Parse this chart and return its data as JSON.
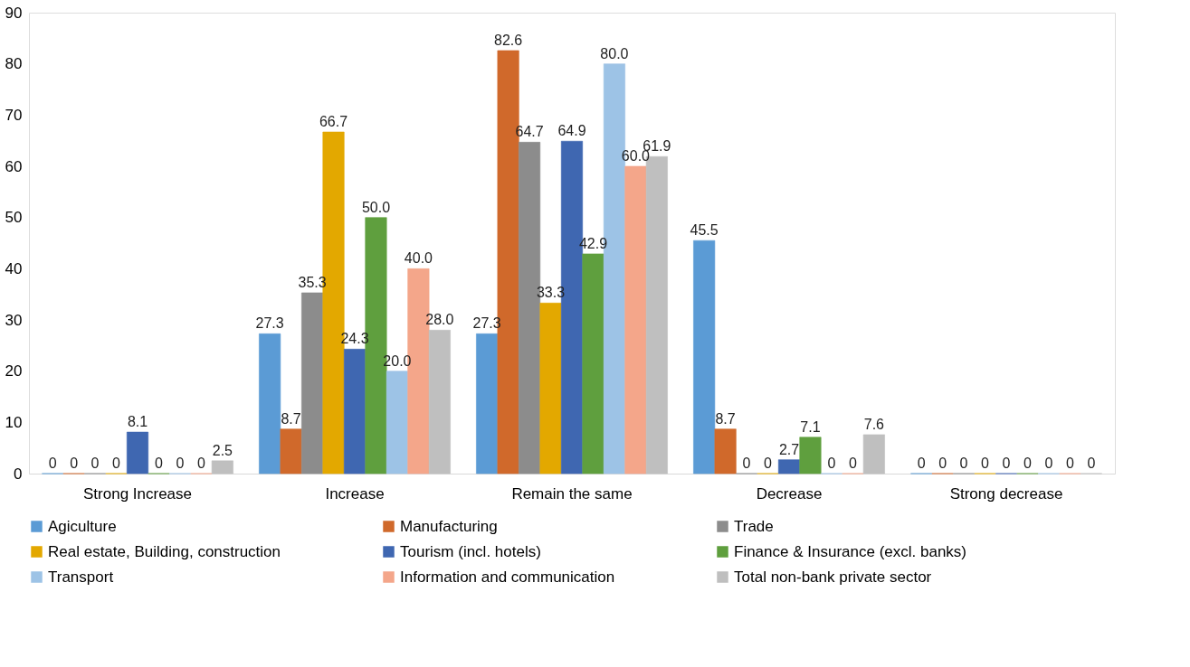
{
  "chart_data": {
    "type": "bar",
    "categories": [
      "Strong Increase",
      "Increase",
      "Remain the same",
      "Decrease",
      "Strong decrease"
    ],
    "series": [
      {
        "name": "Agiculture",
        "color": "#5b9bd5",
        "values": [
          0,
          27.3,
          27.3,
          45.5,
          0
        ],
        "value_labels": [
          "0",
          "27.3",
          "27.3",
          "45.5",
          "0"
        ]
      },
      {
        "name": "Manufacturing",
        "color": "#d0692b",
        "values": [
          0,
          8.7,
          82.6,
          8.7,
          0
        ],
        "value_labels": [
          "0",
          "8.7",
          "82.6",
          "8.7",
          "0"
        ]
      },
      {
        "name": "Trade",
        "color": "#8c8c8c",
        "values": [
          0,
          35.3,
          64.7,
          0,
          0
        ],
        "value_labels": [
          "0",
          "35.3",
          "64.7",
          "0",
          "0"
        ]
      },
      {
        "name": "Real estate, Building, construction",
        "color": "#e3a800",
        "values": [
          0,
          66.7,
          33.3,
          0,
          0
        ],
        "value_labels": [
          "0",
          "66.7",
          "33.3",
          "0",
          "0"
        ]
      },
      {
        "name": "Tourism (incl. hotels)",
        "color": "#3f67b1",
        "values": [
          8.1,
          24.3,
          64.9,
          2.7,
          0
        ],
        "value_labels": [
          "8.1",
          "24.3",
          "64.9",
          "2.7",
          "0"
        ]
      },
      {
        "name": "Finance & Insurance (excl. banks)",
        "color": "#5f9f3e",
        "values": [
          0,
          50.0,
          42.9,
          7.1,
          0
        ],
        "value_labels": [
          "0",
          "50.0",
          "42.9",
          "7.1",
          "0"
        ]
      },
      {
        "name": "Transport",
        "color": "#9dc3e6",
        "values": [
          0,
          20.0,
          80.0,
          0,
          0
        ],
        "value_labels": [
          "0",
          "20.0",
          "80.0",
          "0",
          "0"
        ]
      },
      {
        "name": "Information and communication",
        "color": "#f4a68a",
        "values": [
          0,
          40.0,
          60.0,
          0,
          0
        ],
        "value_labels": [
          "0",
          "40.0",
          "60.0",
          "0",
          "0"
        ]
      },
      {
        "name": "Total non-bank private sector",
        "color": "#bfbfbf",
        "values": [
          2.5,
          28.0,
          61.9,
          7.6,
          0
        ],
        "value_labels": [
          "2.5",
          "28.0",
          "61.9",
          "7.6",
          "0"
        ]
      }
    ],
    "ylim": [
      0,
      90
    ],
    "yticks": [
      0,
      10,
      20,
      30,
      40,
      50,
      60,
      70,
      80,
      90
    ],
    "grid": false,
    "legend": "bottom"
  }
}
